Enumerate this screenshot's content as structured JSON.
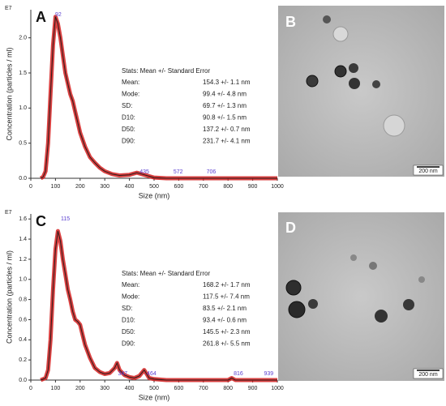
{
  "chart_data": [
    {
      "type": "line",
      "label": "A",
      "exponent": "E7",
      "x_label": "Size (nm)",
      "y_label": "Concentration (particles / ml)",
      "xlim": [
        0,
        1000
      ],
      "xticks": [
        0,
        100,
        200,
        300,
        400,
        500,
        600,
        700,
        800,
        900,
        1000
      ],
      "ylim": [
        0,
        2.4
      ],
      "yticks": [
        {
          "value": 0,
          "label": "0.0"
        },
        {
          "value": 0.5,
          "label": "0.5"
        },
        {
          "value": 1,
          "label": "1.0"
        },
        {
          "value": 1.5,
          "label": "1.5"
        },
        {
          "value": 2,
          "label": "2.0"
        }
      ],
      "band_color": "#d42020",
      "peaks": [
        92,
        435,
        572,
        706
      ],
      "stats_title": "Stats: Mean +/- Standard Error",
      "stats": [
        [
          "Mean:",
          "154.3 +/- 1.1 nm"
        ],
        [
          "Mode:",
          "99.4 +/- 4.8 nm"
        ],
        [
          "SD:",
          "69.7 +/- 1.3 nm"
        ],
        [
          "D10:",
          "90.8 +/- 1.5 nm"
        ],
        [
          "D50:",
          "137.2 +/- 0.7 nm"
        ],
        [
          "D90:",
          "231.7 +/- 4.1 nm"
        ]
      ],
      "series": [
        {
          "color": "#2a1a1a",
          "x": [
            40,
            50,
            60,
            70,
            80,
            90,
            100,
            110,
            120,
            130,
            140,
            150,
            160,
            170,
            180,
            190,
            200,
            220,
            240,
            260,
            280,
            300,
            330,
            360,
            400,
            430,
            450,
            480,
            500,
            550,
            600,
            700,
            800,
            900,
            1000
          ],
          "values": [
            0,
            0.02,
            0.1,
            0.5,
            1.2,
            1.9,
            2.3,
            2.2,
            2.0,
            1.75,
            1.5,
            1.35,
            1.2,
            1.1,
            0.95,
            0.8,
            0.65,
            0.45,
            0.3,
            0.22,
            0.15,
            0.1,
            0.06,
            0.04,
            0.05,
            0.08,
            0.06,
            0.03,
            0.01,
            0,
            0,
            0,
            0,
            0,
            0
          ]
        }
      ]
    },
    {
      "type": "line",
      "label": "C",
      "exponent": "E7",
      "x_label": "Size (nm)",
      "y_label": "Concentration (particles / ml)",
      "xlim": [
        0,
        1000
      ],
      "xticks": [
        0,
        100,
        200,
        300,
        400,
        500,
        600,
        700,
        800,
        900,
        1000
      ],
      "ylim": [
        0,
        1.65
      ],
      "yticks": [
        {
          "value": 0,
          "label": "0.0"
        },
        {
          "value": 0.2,
          "label": "0.2"
        },
        {
          "value": 0.4,
          "label": "0.4"
        },
        {
          "value": 0.6,
          "label": "0.6"
        },
        {
          "value": 0.8,
          "label": "0.8"
        },
        {
          "value": 1,
          "label": "1.0"
        },
        {
          "value": 1.2,
          "label": "1.2"
        },
        {
          "value": 1.4,
          "label": "1.4"
        },
        {
          "value": 1.6,
          "label": "1.6"
        }
      ],
      "band_color": "#d42020",
      "peaks": [
        115,
        347,
        464,
        816,
        939
      ],
      "stats_title": "Stats: Mean +/- Standard Error",
      "stats": [
        [
          "Mean:",
          "168.2 +/- 1.7 nm"
        ],
        [
          "Mode:",
          "117.5 +/- 7.4 nm"
        ],
        [
          "SD:",
          "83.5 +/- 2.1 nm"
        ],
        [
          "D10:",
          "93.4 +/- 0.6 nm"
        ],
        [
          "D50:",
          "145.5 +/- 2.3 nm"
        ],
        [
          "D90:",
          "261.8 +/- 5.5 nm"
        ]
      ],
      "series": [
        {
          "color": "#2a1a1a",
          "x": [
            40,
            60,
            70,
            80,
            90,
            100,
            110,
            120,
            130,
            140,
            150,
            160,
            170,
            180,
            190,
            200,
            210,
            220,
            240,
            260,
            280,
            300,
            320,
            340,
            350,
            360,
            380,
            400,
            420,
            440,
            460,
            470,
            480,
            500,
            550,
            600,
            700,
            800,
            815,
            830,
            900,
            1000
          ],
          "values": [
            0,
            0.02,
            0.1,
            0.4,
            0.9,
            1.3,
            1.48,
            1.38,
            1.2,
            1.05,
            0.9,
            0.8,
            0.68,
            0.6,
            0.58,
            0.55,
            0.45,
            0.35,
            0.22,
            0.12,
            0.08,
            0.06,
            0.07,
            0.12,
            0.17,
            0.1,
            0.05,
            0.03,
            0.02,
            0.04,
            0.1,
            0.06,
            0.02,
            0.01,
            0,
            0,
            0,
            0,
            0.02,
            0,
            0,
            0
          ]
        }
      ]
    }
  ],
  "micrographs": [
    {
      "label": "B",
      "scale_bar": "200 nm"
    },
    {
      "label": "D",
      "scale_bar": "200 nm"
    }
  ]
}
